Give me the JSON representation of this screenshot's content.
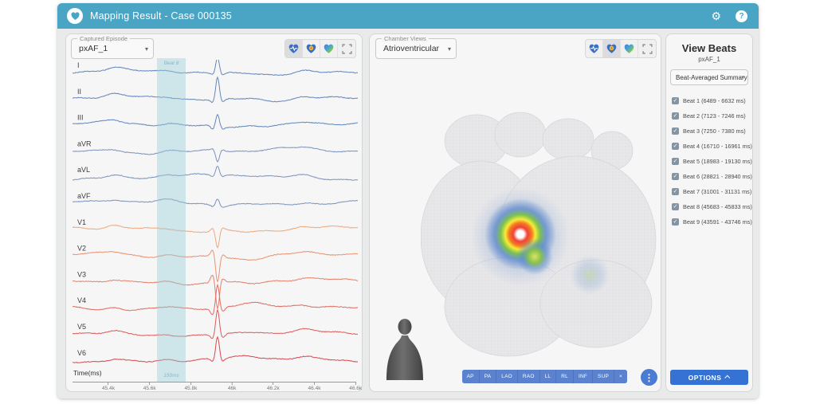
{
  "header": {
    "title": "Mapping Result - Case 000135"
  },
  "icons": {
    "gear": "⚙",
    "help": "?",
    "check": "✓",
    "caret_down": "▾",
    "dots": "⋮"
  },
  "ecg_panel": {
    "episode_label": "Captured Episode",
    "episode_value": "pxAF_1",
    "band_top_label": "Beat 8",
    "band_bottom_label": "150ms",
    "time_label": "Time(ms)",
    "ticks": [
      "45.4k",
      "45.6k",
      "45.8k",
      "46k",
      "46.2k",
      "46.4k",
      "46.6k"
    ]
  },
  "chamber_panel": {
    "views_label": "Chamber Views",
    "views_value": "Atrioventricular",
    "view_buttons": [
      "AP",
      "PA",
      "LAO",
      "RAO",
      "LL",
      "RL",
      "INF",
      "SUP",
      "×"
    ]
  },
  "beats_panel": {
    "title": "View Beats",
    "subtitle": "pxAF_1",
    "dropdown_value": "Beat-Averaged Summary",
    "beats": [
      {
        "label": "Beat 1 (6489 - 6632 ms)",
        "checked": true
      },
      {
        "label": "Beat 2 (7123 - 7246 ms)",
        "checked": true
      },
      {
        "label": "Beat 3 (7250 - 7380 ms)",
        "checked": true
      },
      {
        "label": "Beat 4 (16710 - 16961 ms)",
        "checked": true
      },
      {
        "label": "Beat 5 (18983 - 19130 ms)",
        "checked": true
      },
      {
        "label": "Beat 6 (28821 - 28940 ms)",
        "checked": true
      },
      {
        "label": "Beat 7 (31001 - 31131 ms)",
        "checked": true
      },
      {
        "label": "Beat 8 (45683 - 45833 ms)",
        "checked": true
      },
      {
        "label": "Beat 9 (43591 - 43746 ms)",
        "checked": true
      }
    ],
    "options_label": "OPTIONS"
  },
  "colors": {
    "header_teal": "#4aa5c4",
    "accent_blue": "#3572d3",
    "segment_blue": "#5a82cf",
    "band_teal": "rgba(150,205,218,0.42)",
    "limb_lead": "#6286bb"
  },
  "chart_data": {
    "type": "line",
    "title": "12-lead ECG strip",
    "xlabel": "Time(ms)",
    "x_ticks": [
      "45.4k",
      "45.6k",
      "45.8k",
      "46k",
      "46.2k",
      "46.4k",
      "46.6k"
    ],
    "highlight": {
      "label": "Beat 8",
      "duration": "150ms",
      "x_range_ms": [
        45683,
        45833
      ]
    },
    "leads": [
      {
        "label": "I",
        "color": "#6286bb",
        "pre": -2,
        "main": 20,
        "post": -3
      },
      {
        "label": "II",
        "color": "#6286bb",
        "pre": -4,
        "main": 28,
        "post": -4
      },
      {
        "label": "III",
        "color": "#6286bb",
        "pre": -5,
        "main": 15,
        "post": -3
      },
      {
        "label": "aVR",
        "color": "#7b93bd",
        "pre": 2,
        "main": -14,
        "post": 2
      },
      {
        "label": "aVL",
        "color": "#7b93bd",
        "pre": -2,
        "main": 12,
        "post": -2
      },
      {
        "label": "aVF",
        "color": "#7b93bd",
        "pre": -2,
        "main": 9,
        "post": -2
      },
      {
        "label": "V1",
        "color": "#efa77c",
        "pre": 4,
        "main": -22,
        "post": 3
      },
      {
        "label": "V2",
        "color": "#ea9170",
        "pre": 9,
        "main": -32,
        "post": 4
      },
      {
        "label": "V3",
        "color": "#e57f68",
        "pre": 11,
        "main": -34,
        "post": 5
      },
      {
        "label": "V4",
        "color": "#e06b60",
        "pre": -9,
        "main": 30,
        "post": -6
      },
      {
        "label": "V5",
        "color": "#db5a58",
        "pre": -5,
        "main": 32,
        "post": -5
      },
      {
        "label": "V6",
        "color": "#d54a50",
        "pre": -4,
        "main": 28,
        "post": -4
      }
    ]
  }
}
